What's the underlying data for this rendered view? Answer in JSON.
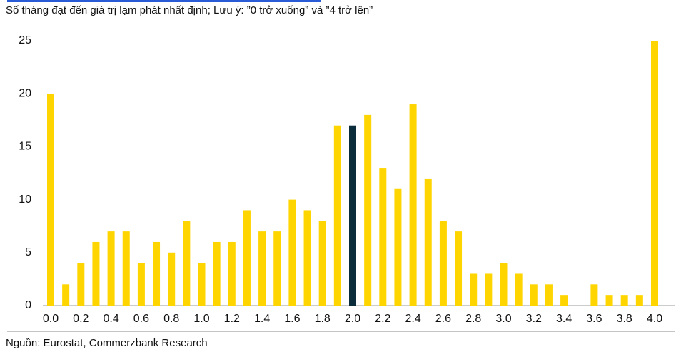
{
  "chart_data": {
    "type": "bar",
    "title": "Số tháng đạt đến giá trị lạm phát nhất định; Lưu ý: ”0 trở xuống” và ”4 trở lên”",
    "source": "Nguồn: Eurostat, Commerzbank Research",
    "categories": [
      "0.0",
      null,
      "0.2",
      null,
      "0.4",
      null,
      "0.6",
      null,
      "0.8",
      null,
      "1.0",
      null,
      "1.2",
      null,
      "1.4",
      null,
      "1.6",
      null,
      "1.8",
      null,
      "2.0",
      null,
      "2.2",
      null,
      "2.4",
      null,
      "2.6",
      null,
      "2.8",
      null,
      "3.0",
      null,
      "3.2",
      null,
      "3.4",
      null,
      "3.6",
      null,
      "3.8",
      null,
      "4.0"
    ],
    "values": [
      20,
      2,
      4,
      6,
      7,
      7,
      4,
      6,
      5,
      8,
      4,
      6,
      6,
      9,
      7,
      7,
      10,
      9,
      8,
      17,
      17,
      18,
      13,
      11,
      19,
      12,
      8,
      7,
      3,
      3,
      4,
      3,
      2,
      2,
      1,
      0,
      2,
      1,
      1,
      1,
      25
    ],
    "colors": [
      "#ffd500",
      "#ffd500",
      "#ffd500",
      "#ffd500",
      "#ffd500",
      "#ffd500",
      "#ffd500",
      "#ffd500",
      "#ffd500",
      "#ffd500",
      "#ffd500",
      "#ffd500",
      "#ffd500",
      "#ffd500",
      "#ffd500",
      "#ffd500",
      "#ffd500",
      "#ffd500",
      "#ffd500",
      "#ffd500",
      "#0b2c3a",
      "#ffd500",
      "#ffd500",
      "#ffd500",
      "#ffd500",
      "#ffd500",
      "#ffd500",
      "#ffd500",
      "#ffd500",
      "#ffd500",
      "#ffd500",
      "#ffd500",
      "#ffd500",
      "#ffd500",
      "#ffd500",
      "#ffd500",
      "#ffd500",
      "#ffd500",
      "#ffd500",
      "#ffd500",
      "#ffd500"
    ],
    "ylim": [
      0,
      25
    ],
    "yticks": [
      0,
      5,
      10,
      15,
      20,
      25
    ],
    "grid": false
  }
}
